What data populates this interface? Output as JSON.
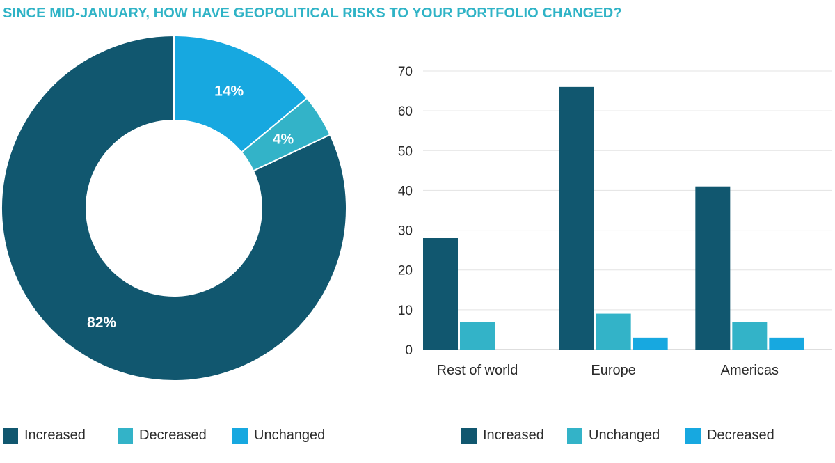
{
  "title": "SINCE MID-JANUARY, HOW HAVE GEOPOLITICAL RISKS TO YOUR PORTFOLIO CHANGED?",
  "colors": {
    "increased": "#11576f",
    "decreased": "#33b3c8",
    "unchanged": "#17a8e0",
    "title": "#2fb3c6"
  },
  "chart_data": [
    {
      "type": "pie",
      "donut": true,
      "slices": [
        {
          "label": "Increased",
          "value": 82,
          "display": "82%",
          "color": "#11576f"
        },
        {
          "label": "Decreased",
          "value": 4,
          "display": "4%",
          "color": "#33b3c8"
        },
        {
          "label": "Unchanged",
          "value": 14,
          "display": "14%",
          "color": "#17a8e0"
        }
      ],
      "legend": [
        {
          "label": "Increased",
          "color": "#11576f"
        },
        {
          "label": "Decreased",
          "color": "#33b3c8"
        },
        {
          "label": "Unchanged",
          "color": "#17a8e0"
        }
      ],
      "legend_position": "bottom"
    },
    {
      "type": "bar",
      "categories": [
        "Rest of world",
        "Europe",
        "Americas"
      ],
      "series": [
        {
          "name": "Increased",
          "values": [
            28,
            66,
            41
          ],
          "color": "#11576f"
        },
        {
          "name": "Unchanged",
          "values": [
            7,
            9,
            7
          ],
          "color": "#33b3c8"
        },
        {
          "name": "Decreased",
          "values": [
            0,
            3,
            3
          ],
          "color": "#17a8e0"
        }
      ],
      "ylim": [
        0,
        70
      ],
      "yticks": [
        "0",
        "10",
        "20",
        "30",
        "40",
        "50",
        "60",
        "70"
      ],
      "grid": true,
      "legend_position": "bottom"
    }
  ]
}
